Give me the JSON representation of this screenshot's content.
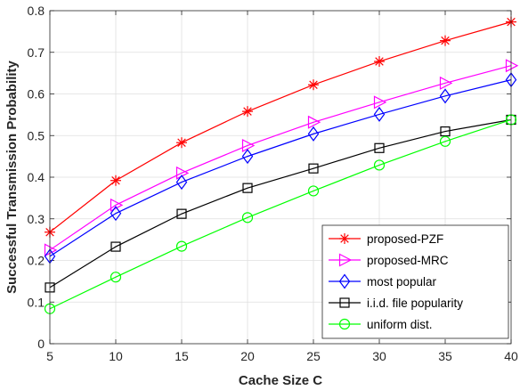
{
  "chart_data": {
    "type": "line",
    "xlabel": "Cache Size C",
    "ylabel": "Successful Transmission Probability",
    "x": [
      5,
      10,
      15,
      20,
      25,
      30,
      35,
      40
    ],
    "xlim": [
      5,
      40
    ],
    "ylim": [
      0,
      0.8
    ],
    "xticks": [
      5,
      10,
      15,
      20,
      25,
      30,
      35,
      40
    ],
    "yticks": [
      0,
      0.1,
      0.2,
      0.3,
      0.4,
      0.5,
      0.6,
      0.7,
      0.8
    ],
    "ytick_labels": [
      "0",
      "0.1",
      "0.2",
      "0.3",
      "0.4",
      "0.5",
      "0.6",
      "0.7",
      "0.8"
    ],
    "grid": true,
    "legend_position": "bottom-right",
    "series": [
      {
        "name": "proposed-PZF",
        "color": "#ff0000",
        "marker": "asterisk",
        "values": [
          0.268,
          0.392,
          0.483,
          0.558,
          0.622,
          0.678,
          0.728,
          0.773
        ]
      },
      {
        "name": "proposed-MRC",
        "color": "#ff00ff",
        "marker": "triangle-right",
        "values": [
          0.225,
          0.333,
          0.41,
          0.476,
          0.532,
          0.58,
          0.626,
          0.668
        ]
      },
      {
        "name": "most popular",
        "color": "#0000ff",
        "marker": "diamond",
        "values": [
          0.21,
          0.313,
          0.388,
          0.45,
          0.504,
          0.551,
          0.595,
          0.634
        ]
      },
      {
        "name": "i.i.d. file popularity",
        "color": "#000000",
        "marker": "square",
        "values": [
          0.135,
          0.233,
          0.312,
          0.374,
          0.421,
          0.47,
          0.51,
          0.538
        ]
      },
      {
        "name": "uniform dist.",
        "color": "#00ff00",
        "marker": "circle",
        "values": [
          0.084,
          0.16,
          0.234,
          0.303,
          0.367,
          0.429,
          0.486,
          0.538
        ]
      }
    ]
  }
}
